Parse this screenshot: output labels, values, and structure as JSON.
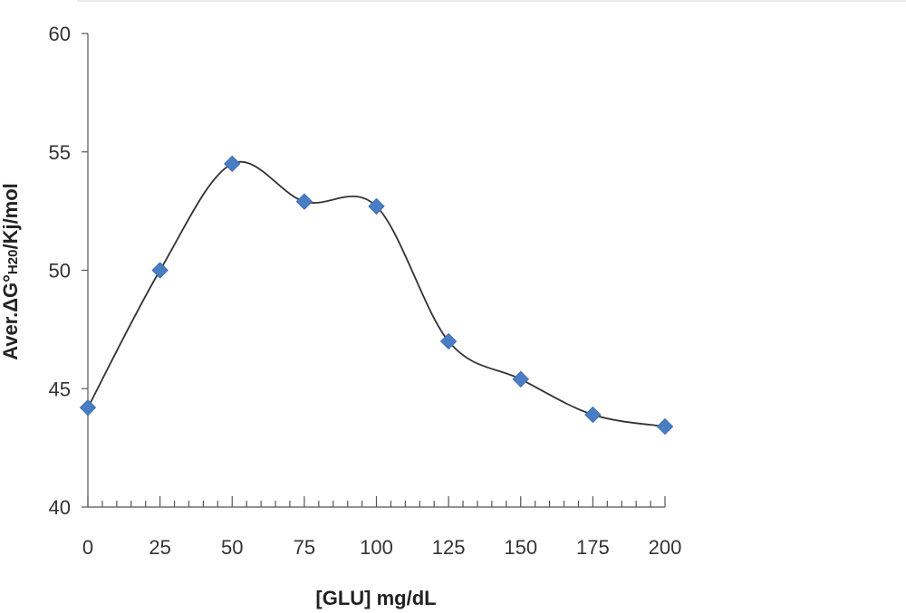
{
  "chart_data": {
    "type": "line",
    "x": [
      0,
      25,
      50,
      75,
      100,
      125,
      150,
      175,
      200
    ],
    "series": [
      {
        "values": [
          44.2,
          50.0,
          54.5,
          52.9,
          52.7,
          47.0,
          45.4,
          43.9,
          43.4
        ]
      }
    ],
    "xlabel": "[GLU] mg/dL",
    "ylabel": {
      "prefix": "Aver.ΔG°",
      "sub": "H20",
      "suffix": "/Kj/mol"
    },
    "xlim": [
      0,
      200
    ],
    "ylim": [
      40,
      60
    ],
    "xticks": [
      0,
      25,
      50,
      75,
      100,
      125,
      150,
      175,
      200
    ],
    "yticks": [
      40,
      45,
      50,
      55,
      60
    ],
    "smooth": true,
    "grid": false,
    "marker": "diamond",
    "marker_color": "#4a7ec4",
    "line_color": "#333333"
  }
}
